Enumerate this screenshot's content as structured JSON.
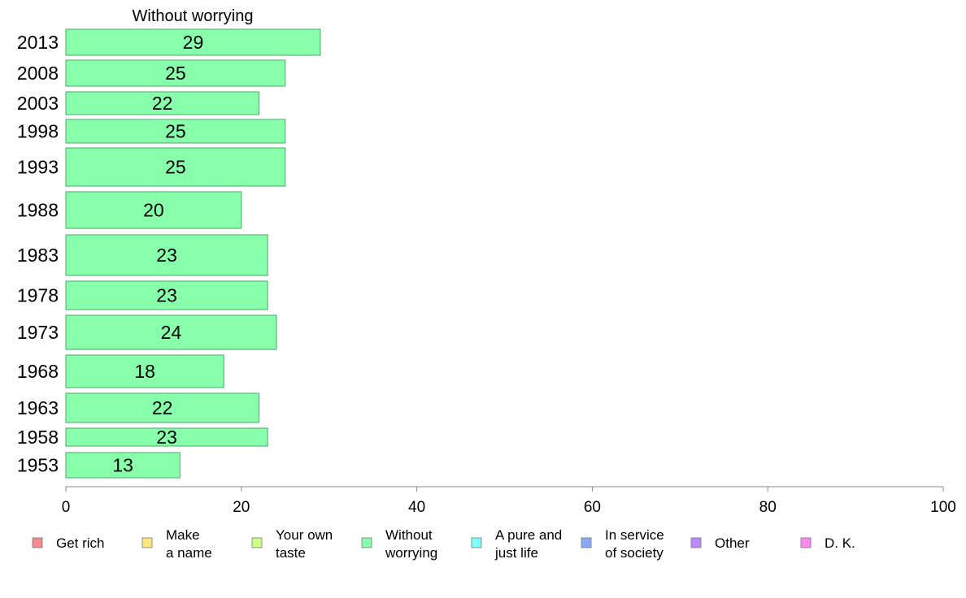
{
  "chart_data": {
    "type": "bar",
    "orientation": "horizontal",
    "title": "Without worrying",
    "categories": [
      "2013",
      "2008",
      "2003",
      "1998",
      "1993",
      "1988",
      "1983",
      "1978",
      "1973",
      "1968",
      "1963",
      "1958",
      "1953"
    ],
    "values": [
      29,
      25,
      22,
      25,
      25,
      20,
      23,
      23,
      24,
      18,
      22,
      23,
      13
    ],
    "xlim": [
      0,
      100
    ],
    "xticks": [
      0,
      20,
      40,
      60,
      80,
      100
    ],
    "grid": false,
    "bar_color": "#88ffaa",
    "bar_border": "#4aaa6a",
    "legend_placement": "bottom",
    "legend": [
      {
        "label": [
          "Get rich"
        ],
        "color": "#f58a8a"
      },
      {
        "label": [
          "Make",
          "a name"
        ],
        "color": "#ffe680"
      },
      {
        "label": [
          "Your own",
          "taste"
        ],
        "color": "#ccff88"
      },
      {
        "label": [
          "Without",
          "worrying"
        ],
        "color": "#88ffaa"
      },
      {
        "label": [
          "A pure and",
          "just life"
        ],
        "color": "#80ffff"
      },
      {
        "label": [
          "In service",
          "of society"
        ],
        "color": "#88aaf5"
      },
      {
        "label": [
          "Other"
        ],
        "color": "#bb88ff"
      },
      {
        "label": [
          "D. K."
        ],
        "color": "#ff88ee"
      }
    ]
  }
}
